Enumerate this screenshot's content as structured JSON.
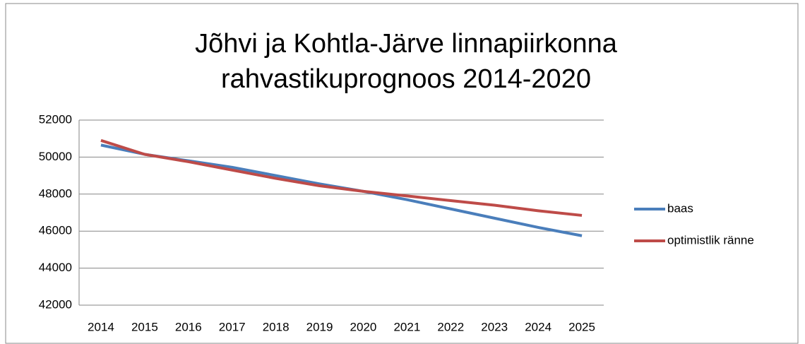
{
  "chart_data": {
    "type": "line",
    "title": [
      "Jõhvi ja Kohtla-Järve linnapiirkonna",
      "rahvastikuprognoos 2014-2020"
    ],
    "categories": [
      "2014",
      "2015",
      "2016",
      "2017",
      "2018",
      "2019",
      "2020",
      "2021",
      "2022",
      "2023",
      "2024",
      "2025"
    ],
    "series": [
      {
        "name": "baas",
        "color": "#4a7ebb",
        "values": [
          50650,
          50150,
          49800,
          49450,
          49000,
          48550,
          48150,
          47700,
          47200,
          46700,
          46200,
          45750
        ]
      },
      {
        "name": "optimistlik ränne",
        "color": "#be4b48",
        "values": [
          50900,
          50150,
          49750,
          49300,
          48850,
          48450,
          48150,
          47900,
          47650,
          47400,
          47100,
          46850
        ]
      }
    ],
    "ylim": [
      42000,
      52000
    ],
    "yticks": [
      42000,
      44000,
      46000,
      48000,
      50000,
      52000
    ],
    "grid": true,
    "legend": "right"
  }
}
